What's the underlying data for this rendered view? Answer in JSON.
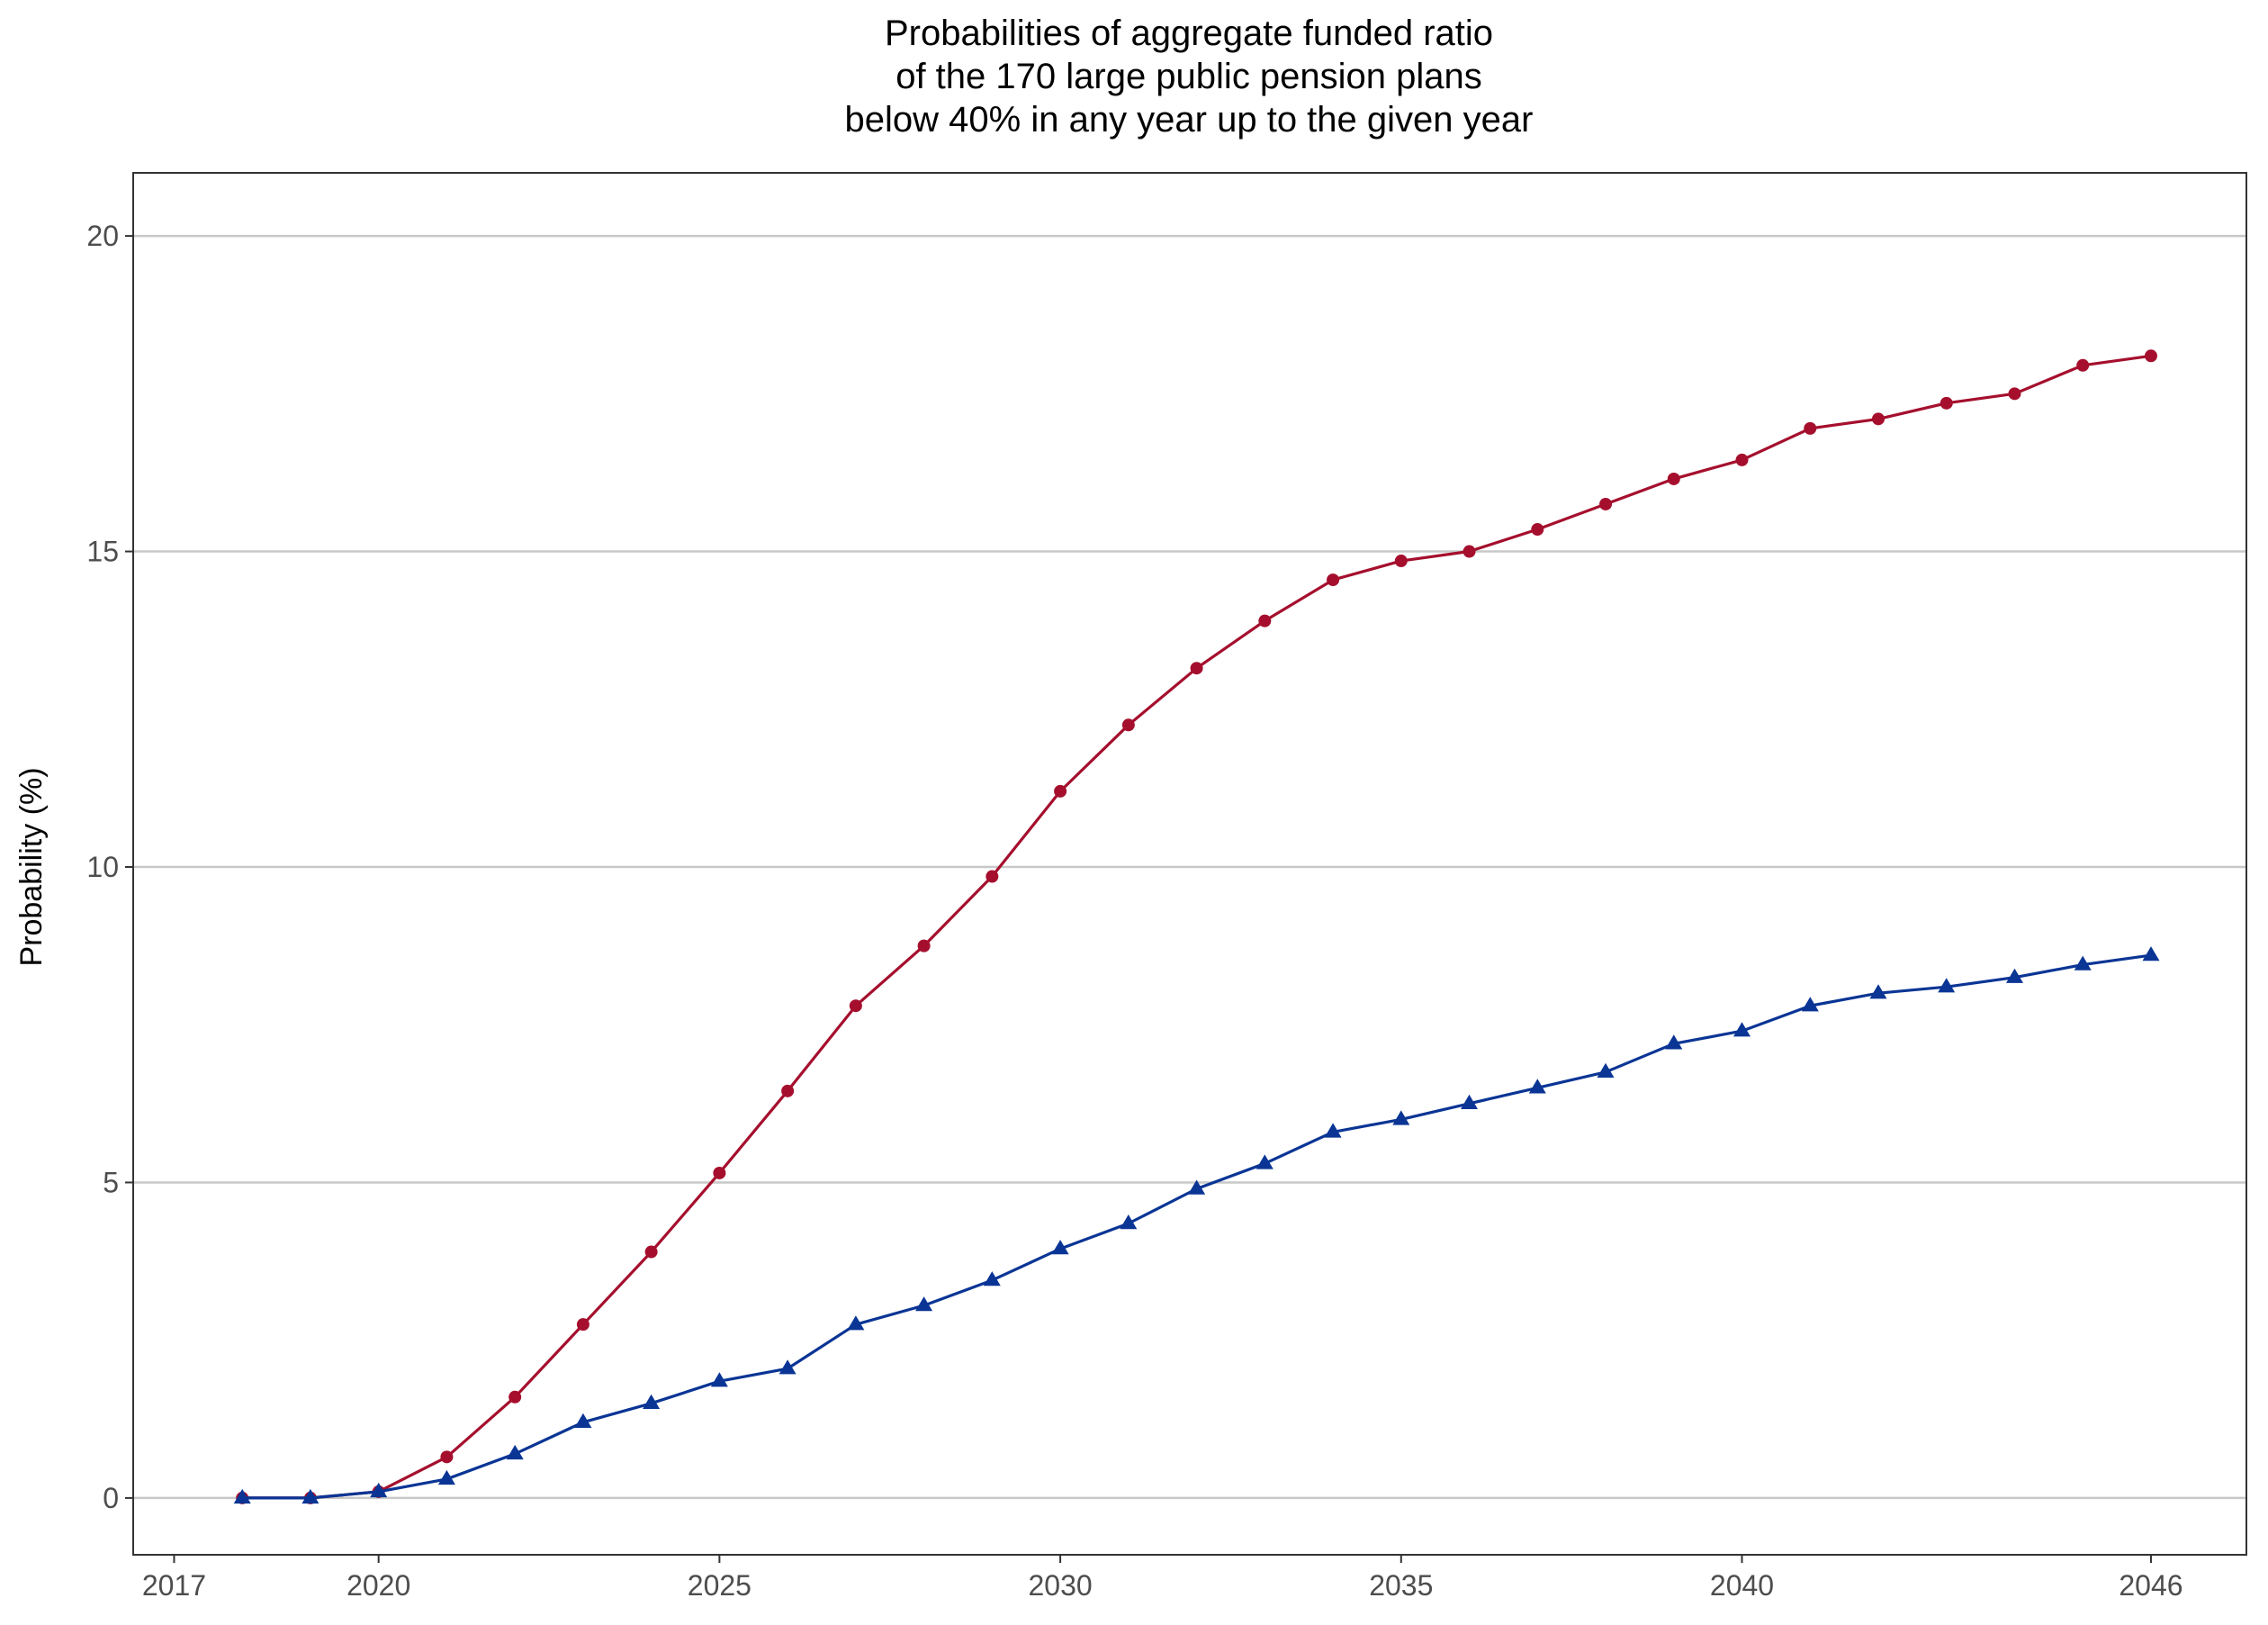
{
  "chart_data": {
    "type": "line",
    "title_lines": [
      "Probabilities of aggregate funded ratio",
      "of the 170 large public pension plans",
      "below 40% in any year up to the given year"
    ],
    "xlabel": "",
    "ylabel": "Probability (%)",
    "x_ticks": [
      2017,
      2020,
      2025,
      2030,
      2035,
      2040,
      2046
    ],
    "y_ticks": [
      0,
      5,
      10,
      15,
      20
    ],
    "xlim": [
      2016.4,
      2047.4
    ],
    "ylim": [
      -0.9,
      21
    ],
    "grid": "horizontal major",
    "legend": "none",
    "x": [
      2018,
      2019,
      2020,
      2021,
      2022,
      2023,
      2024,
      2025,
      2026,
      2027,
      2028,
      2029,
      2030,
      2031,
      2032,
      2033,
      2034,
      2035,
      2036,
      2037,
      2038,
      2039,
      2040,
      2041,
      2042,
      2043,
      2044,
      2045,
      2046
    ],
    "series": [
      {
        "color": "#a50f2d",
        "marker": "circle",
        "values": [
          0,
          0,
          0.1,
          0.65,
          1.6,
          2.75,
          3.9,
          5.15,
          6.45,
          7.8,
          8.75,
          9.85,
          11.2,
          12.25,
          13.15,
          13.9,
          14.55,
          14.85,
          15.0,
          15.35,
          15.75,
          16.15,
          16.45,
          16.95,
          17.1,
          17.35,
          17.5,
          17.95,
          18.1
        ]
      },
      {
        "color": "#0a3595",
        "marker": "triangle",
        "values": [
          0,
          0,
          0.1,
          0.3,
          0.7,
          1.2,
          1.5,
          1.85,
          2.05,
          2.75,
          3.05,
          3.45,
          3.95,
          4.35,
          4.9,
          5.3,
          5.8,
          6.0,
          6.25,
          6.5,
          6.75,
          7.2,
          7.4,
          7.8,
          8.0,
          8.1,
          8.25,
          8.45,
          8.6
        ]
      }
    ]
  }
}
